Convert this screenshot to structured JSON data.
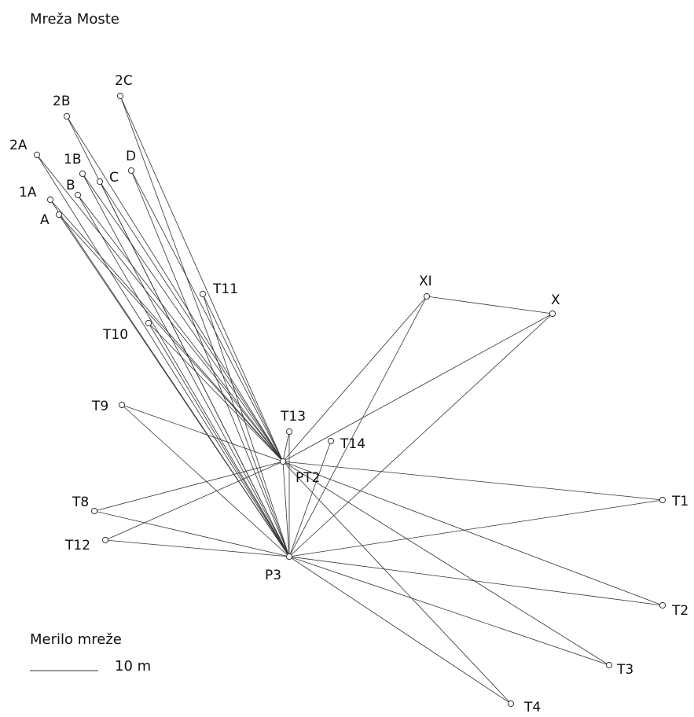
{
  "title": "Mreža Moste",
  "scale": {
    "title": "Merilo mreže",
    "value": "10 m"
  },
  "colors": {
    "line": "#333333",
    "point": "#333333",
    "text": "#111111"
  },
  "points": [
    {
      "id": "2C",
      "label": "2C"
    },
    {
      "id": "2B",
      "label": "2B"
    },
    {
      "id": "2A",
      "label": "2A"
    },
    {
      "id": "1B",
      "label": "1B"
    },
    {
      "id": "D",
      "label": "D"
    },
    {
      "id": "C",
      "label": "C"
    },
    {
      "id": "B",
      "label": "B"
    },
    {
      "id": "1A",
      "label": "1A"
    },
    {
      "id": "A",
      "label": "A"
    },
    {
      "id": "T11",
      "label": "T11"
    },
    {
      "id": "T10",
      "label": "T10"
    },
    {
      "id": "XI",
      "label": "XI"
    },
    {
      "id": "X",
      "label": "X"
    },
    {
      "id": "T9",
      "label": "T9"
    },
    {
      "id": "T13",
      "label": "T13"
    },
    {
      "id": "T14",
      "label": "T14"
    },
    {
      "id": "PT2",
      "label": "PT2"
    },
    {
      "id": "T8",
      "label": "T8"
    },
    {
      "id": "T1",
      "label": "T1"
    },
    {
      "id": "T12",
      "label": "T12"
    },
    {
      "id": "P3",
      "label": "P3"
    },
    {
      "id": "T2",
      "label": "T2"
    },
    {
      "id": "T3",
      "label": "T3"
    },
    {
      "id": "T4",
      "label": "T4"
    }
  ],
  "connections": [
    [
      "PT2",
      "2C"
    ],
    [
      "PT2",
      "2B"
    ],
    [
      "PT2",
      "2A"
    ],
    [
      "PT2",
      "1B"
    ],
    [
      "PT2",
      "D"
    ],
    [
      "PT2",
      "C"
    ],
    [
      "PT2",
      "B"
    ],
    [
      "PT2",
      "1A"
    ],
    [
      "PT2",
      "A"
    ],
    [
      "PT2",
      "T11"
    ],
    [
      "PT2",
      "T10"
    ],
    [
      "PT2",
      "T9"
    ],
    [
      "PT2",
      "T13"
    ],
    [
      "PT2",
      "XI"
    ],
    [
      "PT2",
      "X"
    ],
    [
      "PT2",
      "T8"
    ],
    [
      "PT2",
      "T12"
    ],
    [
      "PT2",
      "T1"
    ],
    [
      "PT2",
      "T2"
    ],
    [
      "PT2",
      "T3"
    ],
    [
      "PT2",
      "T4"
    ],
    [
      "PT2",
      "P3"
    ],
    [
      "P3",
      "2C"
    ],
    [
      "P3",
      "2B"
    ],
    [
      "P3",
      "2A"
    ],
    [
      "P3",
      "1B"
    ],
    [
      "P3",
      "D"
    ],
    [
      "P3",
      "C"
    ],
    [
      "P3",
      "B"
    ],
    [
      "P3",
      "1A"
    ],
    [
      "P3",
      "A"
    ],
    [
      "P3",
      "T11"
    ],
    [
      "P3",
      "T10"
    ],
    [
      "P3",
      "T9"
    ],
    [
      "P3",
      "T13"
    ],
    [
      "P3",
      "T14"
    ],
    [
      "P3",
      "XI"
    ],
    [
      "P3",
      "X"
    ],
    [
      "P3",
      "T8"
    ],
    [
      "P3",
      "T12"
    ],
    [
      "P3",
      "T1"
    ],
    [
      "P3",
      "T2"
    ],
    [
      "P3",
      "T3"
    ],
    [
      "P3",
      "T4"
    ],
    [
      "XI",
      "X"
    ]
  ]
}
